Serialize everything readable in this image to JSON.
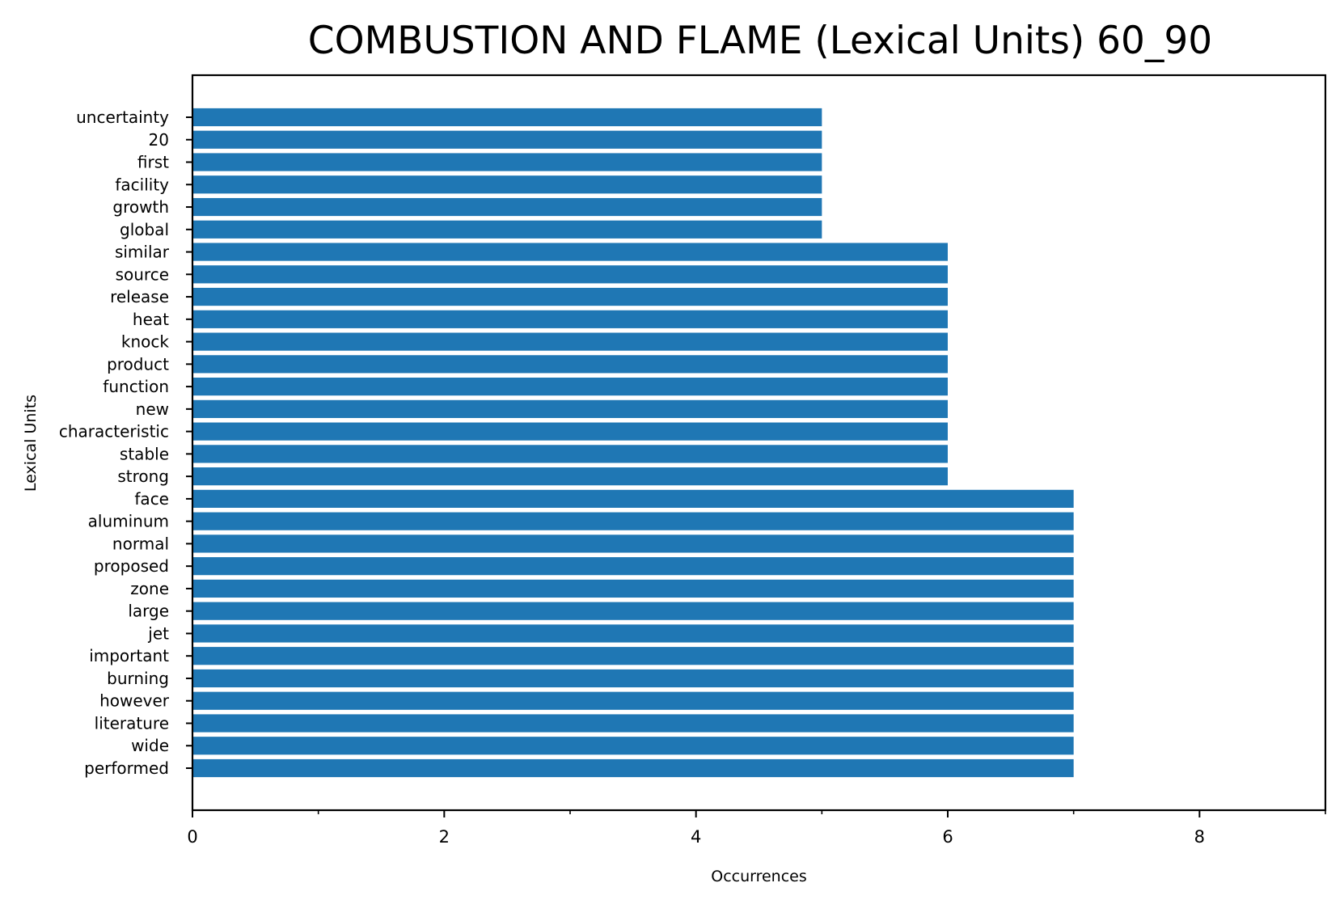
{
  "chart_data": {
    "type": "bar",
    "orientation": "horizontal",
    "title": "COMBUSTION AND FLAME (Lexical Units) 60_90",
    "xlabel": "Occurrences",
    "ylabel": "Lexical Units",
    "xlim": [
      0,
      9
    ],
    "x_major_ticks": [
      0,
      2,
      4,
      6,
      8
    ],
    "x_minor_ticks": [
      1,
      3,
      5,
      7,
      9
    ],
    "x_tick_labels": [
      "0",
      "2",
      "4",
      "6",
      "8"
    ],
    "grid": false,
    "bar_color": "#1f77b4",
    "categories": [
      "uncertainty",
      "20",
      "first",
      "facility",
      "growth",
      "global",
      "similar",
      "source",
      "release",
      "heat",
      "knock",
      "product",
      "function",
      "new",
      "characteristic",
      "stable",
      "strong",
      "face",
      "aluminum",
      "normal",
      "proposed",
      "zone",
      "large",
      "jet",
      "important",
      "burning",
      "however",
      "literature",
      "wide",
      "performed"
    ],
    "values": [
      5,
      5,
      5,
      5,
      5,
      5,
      6,
      6,
      6,
      6,
      6,
      6,
      6,
      6,
      6,
      6,
      6,
      7,
      7,
      7,
      7,
      7,
      7,
      7,
      7,
      7,
      7,
      7,
      7,
      7
    ]
  }
}
